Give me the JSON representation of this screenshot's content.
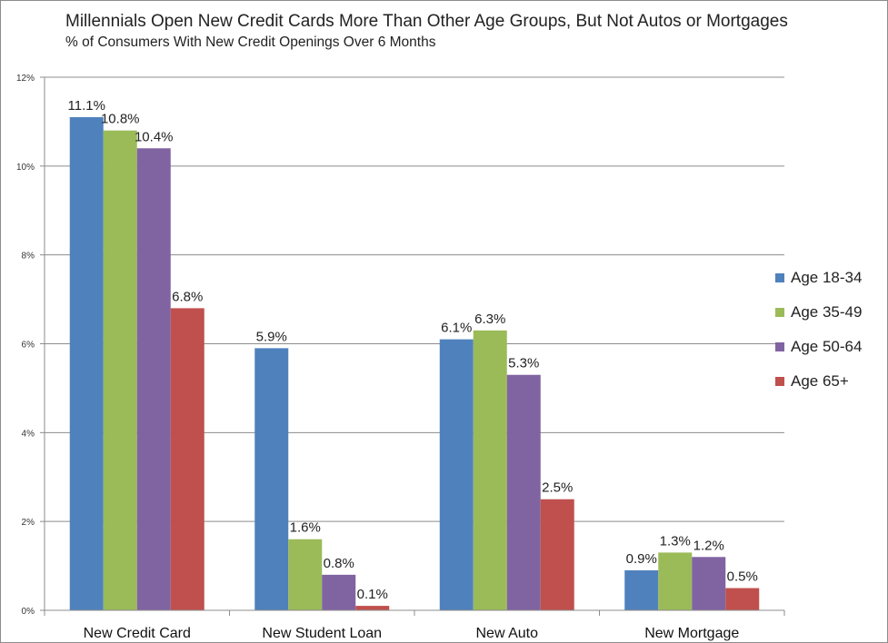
{
  "chart_data": {
    "type": "bar",
    "title": "Millennials Open New Credit Cards More Than Other Age Groups, But Not Autos or Mortgages",
    "subtitle": "% of Consumers With New Credit Openings Over 6 Months",
    "categories": [
      "New Credit Card",
      "New Student Loan",
      "New Auto",
      "New Mortgage"
    ],
    "series": [
      {
        "name": "Age 18-34",
        "color": "#4f81bd",
        "values": [
          11.1,
          5.9,
          6.1,
          0.9
        ]
      },
      {
        "name": "Age 35-49",
        "color": "#9bbb59",
        "values": [
          10.8,
          1.6,
          6.3,
          1.3
        ]
      },
      {
        "name": "Age 50-64",
        "color": "#8064a2",
        "values": [
          10.4,
          0.8,
          5.3,
          1.2
        ]
      },
      {
        "name": "Age 65+",
        "color": "#c0504d",
        "values": [
          6.8,
          0.1,
          2.5,
          0.5
        ]
      }
    ],
    "data_labels": [
      [
        "11.1%",
        "5.9%",
        "6.1%",
        "0.9%"
      ],
      [
        "10.8%",
        "1.6%",
        "6.3%",
        "1.3%"
      ],
      [
        "10.4%",
        "0.8%",
        "5.3%",
        "1.2%"
      ],
      [
        "6.8%",
        "0.1%",
        "2.5%",
        "0.5%"
      ]
    ],
    "yticks": [
      0,
      2,
      4,
      6,
      8,
      10,
      12
    ],
    "ytick_labels": [
      "0%",
      "2%",
      "4%",
      "6%",
      "8%",
      "10%",
      "12%"
    ],
    "ylim": [
      0,
      12
    ],
    "xlabel": "",
    "ylabel": "",
    "grid": true,
    "legend_position": "right"
  }
}
